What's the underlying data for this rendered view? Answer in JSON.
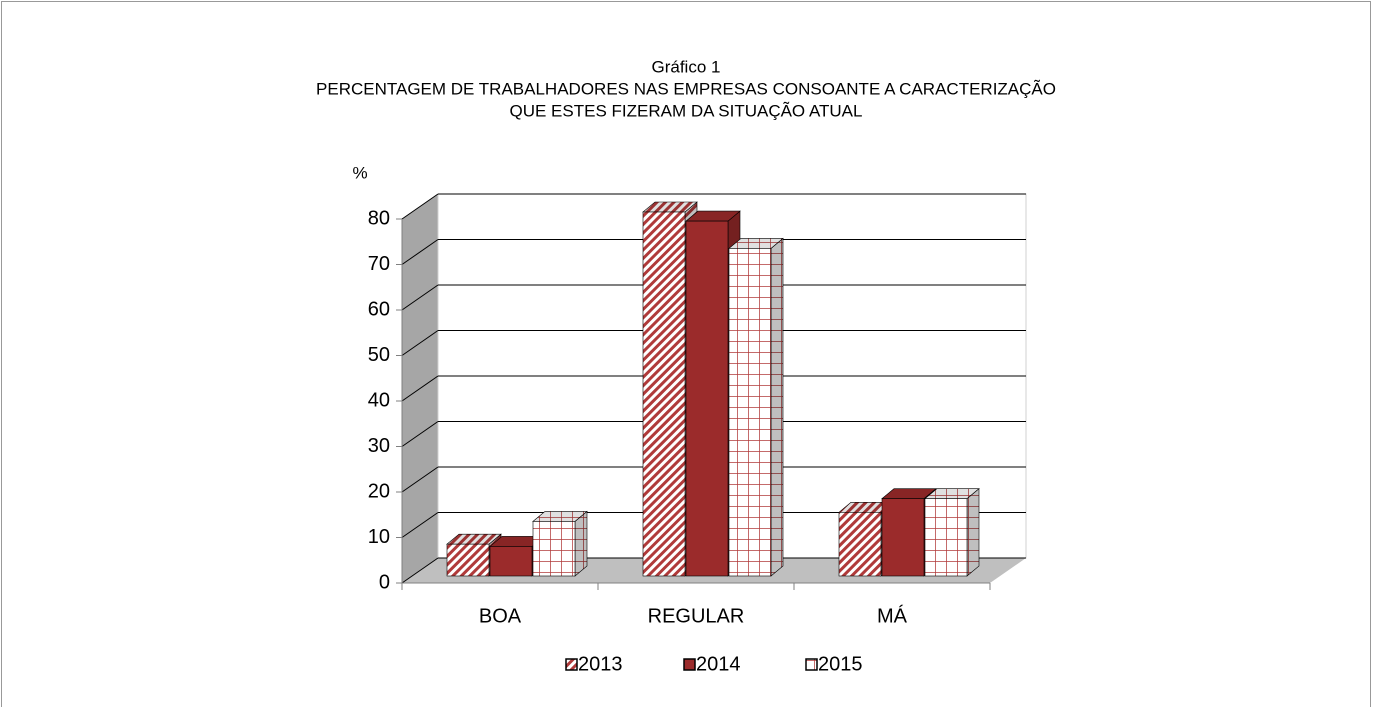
{
  "chart_data": {
    "type": "bar3d",
    "title": [
      "Gráfico 1",
      "PERCENTAGEM DE TRABALHADORES NAS EMPRESAS CONSOANTE A CARACTERIZAÇÃO",
      "QUE ESTES FIZERAM DA SITUAÇÃO ATUAL"
    ],
    "y_label": "%",
    "categories": [
      "BOA",
      "REGULAR",
      "MÁ"
    ],
    "series": [
      {
        "name": "2013",
        "color": "#b03a3a",
        "pattern": "diagonal",
        "values": [
          7,
          80,
          14
        ]
      },
      {
        "name": "2014",
        "color": "#9b2b2b",
        "pattern": "solid",
        "values": [
          6.5,
          78,
          17
        ]
      },
      {
        "name": "2015",
        "color": "#b03a3a",
        "pattern": "grid",
        "values": [
          12,
          72,
          17
        ]
      }
    ],
    "ylim": [
      0,
      80
    ],
    "yticks": [
      0,
      10,
      20,
      30,
      40,
      50,
      60,
      70,
      80
    ],
    "grid": true,
    "legend": "bottom"
  }
}
